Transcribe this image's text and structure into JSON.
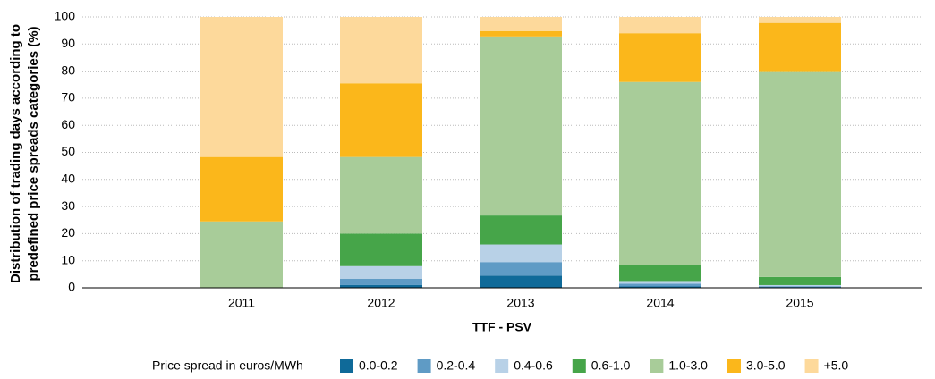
{
  "chart_data": {
    "type": "stacked_bar",
    "ylabel": [
      "Distribution of trading days according to",
      "predefined price spreads categories (%)"
    ],
    "xlabel": "TTF - PSV",
    "legend_title": "Price spread in euros/MWh",
    "categories": [
      "2011",
      "2012",
      "2013",
      "2014",
      "2015"
    ],
    "series": [
      {
        "name": "0.0-0.2",
        "color": "#0f6a99",
        "values": [
          0,
          1,
          4.5,
          0.5,
          0.3
        ]
      },
      {
        "name": "0.2-0.4",
        "color": "#5f9bc5",
        "values": [
          0,
          2.3,
          5,
          1,
          0.3
        ]
      },
      {
        "name": "0.4-0.6",
        "color": "#b8d1e7",
        "values": [
          0,
          4.7,
          6.5,
          1,
          0.4
        ]
      },
      {
        "name": "0.6-1.0",
        "color": "#46a549",
        "values": [
          0,
          12,
          10.7,
          6,
          3
        ]
      },
      {
        "name": "1.0-3.0",
        "color": "#a8cc99",
        "values": [
          24.5,
          28.3,
          66.1,
          67.5,
          76
        ]
      },
      {
        "name": "3.0-5.0",
        "color": "#fbb71b",
        "values": [
          23.8,
          27.2,
          2,
          18,
          17.8
        ]
      },
      {
        "name": "+5.0",
        "color": "#fdd99b",
        "values": [
          51.7,
          24.5,
          5.2,
          6,
          2.2
        ]
      }
    ],
    "ylim": [
      0,
      100
    ],
    "yticks": [
      0,
      10,
      20,
      30,
      40,
      50,
      60,
      70,
      80,
      90,
      100
    ],
    "grid": true
  }
}
